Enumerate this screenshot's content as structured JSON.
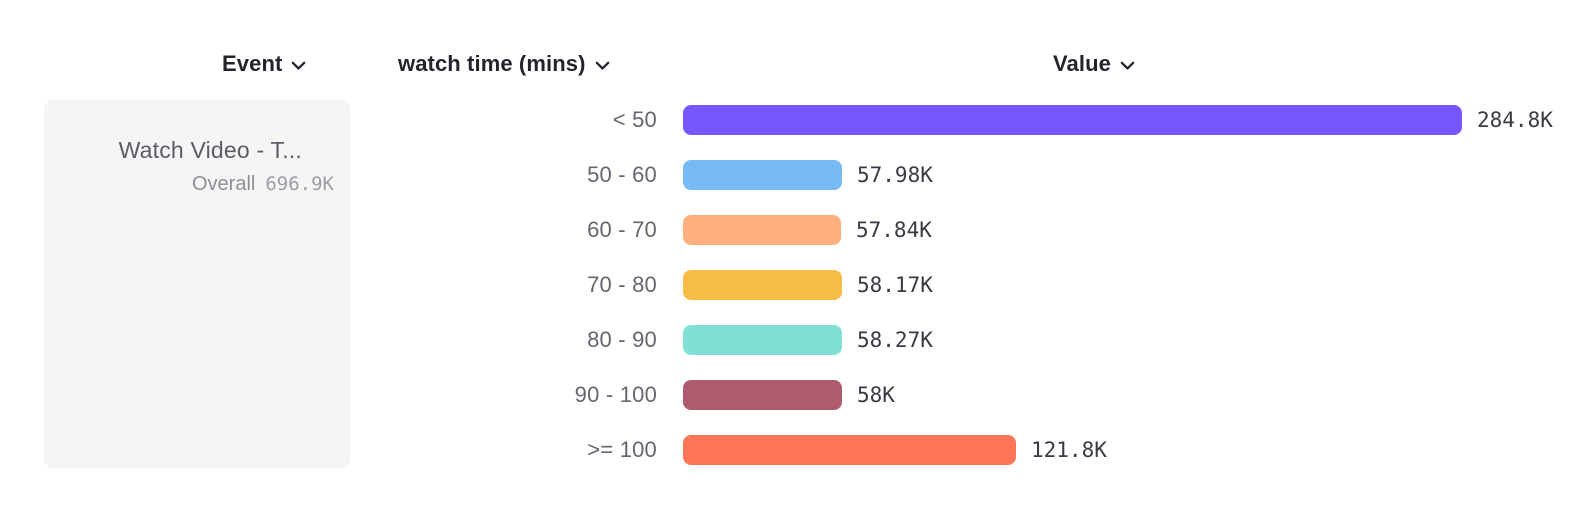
{
  "columns": {
    "event": {
      "label": "Event"
    },
    "breakdown": {
      "label": "watch time (mins)"
    },
    "value": {
      "label": "Value"
    }
  },
  "event_card": {
    "name": "Watch Video - T...",
    "overall_label": "Overall",
    "overall_value": "696.9K"
  },
  "chart_data": {
    "type": "bar",
    "orientation": "horizontal",
    "series_name": "Watch Video - T...",
    "breakdown_property": "watch time (mins)",
    "categories": [
      "< 50",
      "50 - 60",
      "60 - 70",
      "70 - 80",
      "80 - 90",
      "90 - 100",
      ">= 100"
    ],
    "values": [
      284800,
      57980,
      57840,
      58170,
      58270,
      58000,
      121800
    ],
    "value_labels": [
      "284.8K",
      "57.98K",
      "57.84K",
      "58.17K",
      "58.27K",
      "58K",
      "121.8K"
    ],
    "bar_colors": [
      "#7856FF",
      "#76BBF5",
      "#FFAF7E",
      "#F7BC45",
      "#80E0D4",
      "#B05A6E",
      "#FF7557"
    ],
    "overall_total": 696900,
    "xlim": [
      0,
      284800
    ],
    "grid": false,
    "legend_position": "left"
  },
  "ui_colors": {
    "header_text": "#24242e",
    "category_text": "#65656f",
    "value_text": "#3a3a44",
    "card_background": "#f5f5f6"
  }
}
